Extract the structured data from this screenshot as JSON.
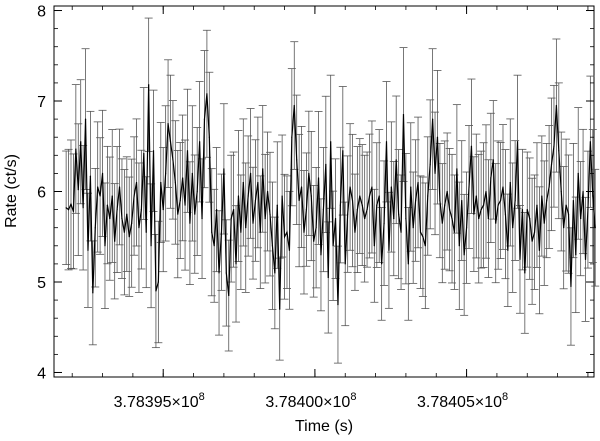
{
  "chart_data": {
    "type": "line",
    "title": "",
    "xlabel": "Time (s)",
    "ylabel": "Rate (ct/s)",
    "xlim": [
      378391400,
      378409200
    ],
    "ylim": [
      3.95,
      8.05
    ],
    "x_ticks": [
      {
        "value": 378395000,
        "mantissa": "3.78395",
        "exponent": "8"
      },
      {
        "value": 378400000,
        "mantissa": "3.78400",
        "exponent": "8"
      },
      {
        "value": 378405000,
        "mantissa": "3.78405",
        "exponent": "8"
      }
    ],
    "x_tick_suffix": "×10",
    "y_ticks": [
      4,
      5,
      6,
      7,
      8
    ],
    "grid": false,
    "line_color": "#000000",
    "errorbar_color": "#555555",
    "series": [
      {
        "x_start": 378391800,
        "x_step": 80,
        "values": [
          5.82,
          5.8,
          5.86,
          5.78,
          6.47,
          6.02,
          6.55,
          5.82,
          6.8,
          5.35,
          6.17,
          4.88,
          5.6,
          6.05,
          5.95,
          6.2,
          5.4,
          5.85,
          5.7,
          5.95,
          5.45,
          5.8,
          6.05,
          5.7,
          5.55,
          5.75,
          5.5,
          5.65,
          5.95,
          6.1,
          5.6,
          5.8,
          6.42,
          5.55,
          7.18,
          5.4,
          6.45,
          4.9,
          5.0,
          6.1,
          5.8,
          6.2,
          6.75,
          6.55,
          6.35,
          6.1,
          5.75,
          5.9,
          6.15,
          5.85,
          6.45,
          5.65,
          6.2,
          5.75,
          6.0,
          6.55,
          5.7,
          6.8,
          7.08,
          6.6,
          5.55,
          5.4,
          5.8,
          5.1,
          5.55,
          6.25,
          5.1,
          4.85,
          5.7,
          5.8,
          5.2,
          5.95,
          5.55,
          6.1,
          5.6,
          5.95,
          6.2,
          5.65,
          5.9,
          6.1,
          5.55,
          6.25,
          5.7,
          6.0,
          5.75,
          5.4,
          5.1,
          5.85,
          4.7,
          5.95,
          5.5,
          5.55,
          5.35,
          6.6,
          6.95,
          6.35,
          5.9,
          6.05,
          5.55,
          5.8,
          6.2,
          5.95,
          5.45,
          5.6,
          6.15,
          5.3,
          5.8,
          6.3,
          5.05,
          6.55,
          5.4,
          5.7,
          4.75,
          5.85,
          6.45,
          5.2,
          5.75,
          6.05,
          5.9,
          5.55,
          5.8,
          5.95,
          5.85,
          5.7,
          5.8,
          5.95,
          6.05,
          5.4,
          5.85,
          5.95,
          5.2,
          5.65,
          6.55,
          5.35,
          6.05,
          5.7,
          6.35,
          5.75,
          5.55,
          6.85,
          5.7,
          5.2,
          6.05,
          5.6,
          5.9,
          6.1,
          5.55,
          5.5,
          5.4,
          5.95,
          6.3,
          6.8,
          6.2,
          6.6,
          5.9,
          5.65,
          5.85,
          6.0,
          5.8,
          5.7,
          5.55,
          6.25,
          5.4,
          5.9,
          5.3,
          5.6,
          6.05,
          6.5,
          5.75,
          5.95,
          5.7,
          5.8,
          5.85,
          6.0,
          5.7,
          6.15,
          6.35,
          5.65,
          5.85,
          5.9,
          6.05,
          5.75,
          5.35,
          6.1,
          5.6,
          5.9,
          6.55,
          5.25,
          5.8,
          5.1,
          5.8,
          5.7,
          5.45,
          5.55,
          5.85,
          5.35,
          5.95,
          5.65,
          5.9,
          6.05,
          6.3,
          6.5,
          6.95,
          6.45,
          6.0,
          5.6,
          5.85,
          5.75,
          4.95,
          5.9,
          5.3,
          6.2,
          5.7,
          6.0,
          5.25,
          5.8,
          6.55,
          5.95,
          5.6
        ]
      }
    ]
  }
}
